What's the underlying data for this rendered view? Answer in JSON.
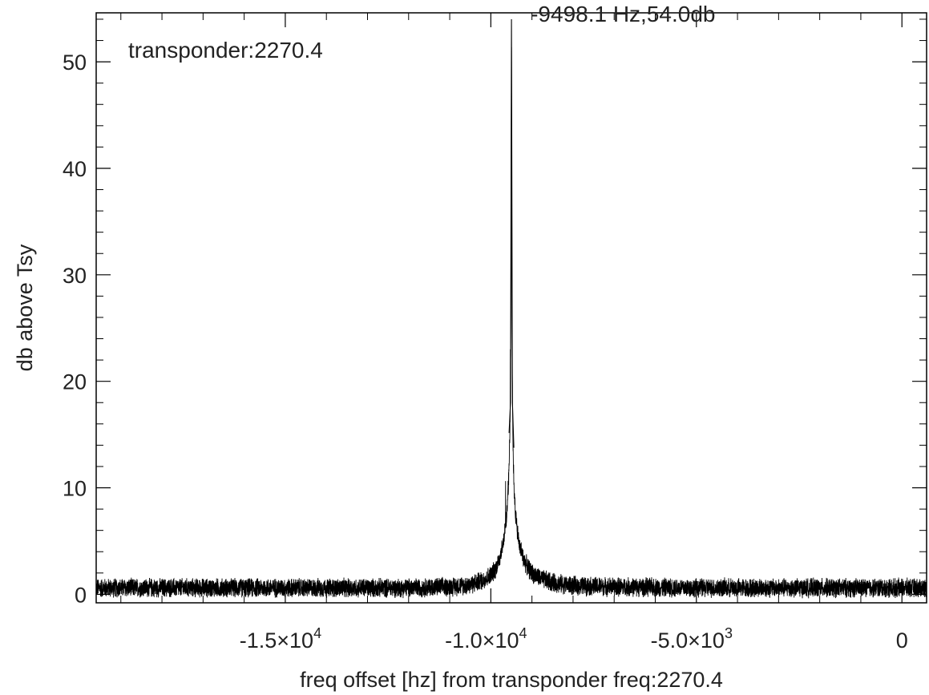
{
  "chart_data": {
    "type": "line",
    "title": "",
    "xlabel": "freq offset [hz] from transponder freq:2270.4",
    "ylabel": "db above Tsy",
    "xlim": [
      -19600,
      600
    ],
    "ylim": [
      -0.8,
      54.6
    ],
    "grid": false,
    "legend": "none",
    "x_ticks": [
      {
        "value": -15000,
        "label_base": "-1.5×10",
        "label_exp": "4"
      },
      {
        "value": -10000,
        "label_base": "-1.0×10",
        "label_exp": "4"
      },
      {
        "value": -5000,
        "label_base": "-5.0×10",
        "label_exp": "3"
      },
      {
        "value": 0,
        "label_base": "0",
        "label_exp": ""
      }
    ],
    "y_ticks": [
      {
        "value": 0,
        "label": "0"
      },
      {
        "value": 10,
        "label": "10"
      },
      {
        "value": 20,
        "label": "20"
      },
      {
        "value": 30,
        "label": "30"
      },
      {
        "value": 40,
        "label": "40"
      },
      {
        "value": 50,
        "label": "50"
      }
    ],
    "annotations": [
      {
        "text": "transponder:2270.4",
        "position": "top-left"
      },
      {
        "text": "-9498.1 Hz,54.0db",
        "position": "above-peak"
      }
    ],
    "series": [
      {
        "noise_floor_db": 0.6,
        "noise_amplitude_db": 1.0,
        "peak_x": -9498.1,
        "peak_db": 54.0,
        "x": [
          -19600,
          -12000,
          -11000,
          -10500,
          -10200,
          -10000,
          -9900,
          -9800,
          -9700,
          -9650,
          -9600,
          -9560,
          -9530,
          -9510,
          -9498.1,
          -9485,
          -9465,
          -9440,
          -9400,
          -9350,
          -9300,
          -9200,
          -9100,
          -9000,
          -8800,
          -8500,
          -8000,
          -7000,
          -5000,
          -2000,
          600
        ],
        "y": [
          0.6,
          0.6,
          0.7,
          0.9,
          1.3,
          1.8,
          2.3,
          3.2,
          4.8,
          6.2,
          8.3,
          11.5,
          16.5,
          26.0,
          54.0,
          24.0,
          15.0,
          10.5,
          7.5,
          5.6,
          4.6,
          3.3,
          2.5,
          2.0,
          1.5,
          1.1,
          0.8,
          0.7,
          0.6,
          0.6,
          0.6
        ]
      }
    ]
  }
}
